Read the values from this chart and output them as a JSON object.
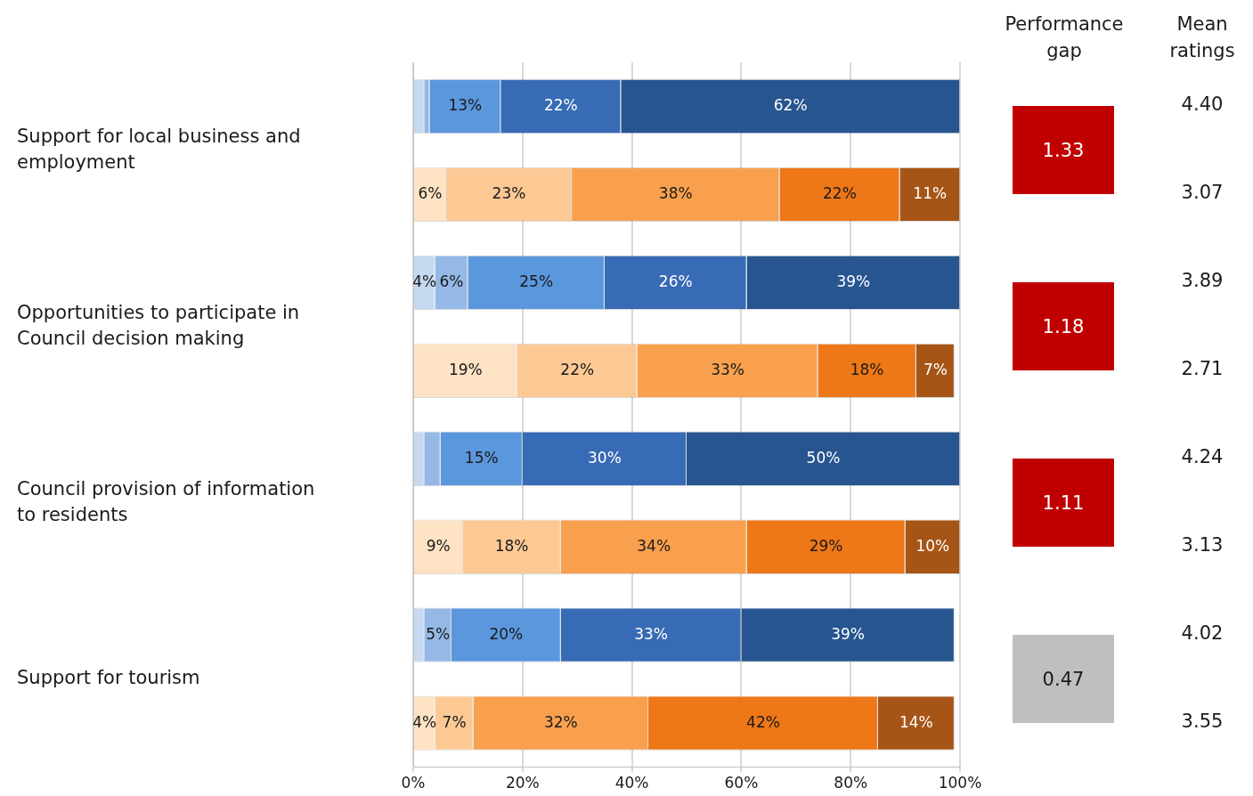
{
  "chart_data": [
    {
      "type": "bar",
      "orientation": "horizontal",
      "stacked": true,
      "categories": [
        "Support for local business and employment",
        null,
        "Opportunities to participate in Council decision making",
        null,
        "Council provision of information to residents",
        null,
        "Support for tourism",
        null
      ],
      "series": [
        {
          "color": "#c5d9f1",
          "values": [
            2,
            null,
            4,
            null,
            2,
            null,
            2,
            null
          ],
          "value_labels": [
            null,
            null,
            "4%",
            null,
            null,
            null,
            null,
            null
          ]
        },
        {
          "color": "#95b8e6",
          "values": [
            1,
            null,
            6,
            null,
            3,
            null,
            5,
            null
          ],
          "value_labels": [
            null,
            null,
            "6%",
            null,
            null,
            null,
            "5%",
            null
          ]
        },
        {
          "color": "#5b97dd",
          "values": [
            13,
            null,
            25,
            null,
            15,
            null,
            20,
            null
          ],
          "value_labels": [
            "13%",
            null,
            "25%",
            null,
            "15%",
            null,
            "20%",
            null
          ]
        },
        {
          "color": "#386bb5",
          "values": [
            22,
            null,
            26,
            null,
            30,
            null,
            33,
            null
          ],
          "value_labels": [
            "22%",
            null,
            "26%",
            null,
            "30%",
            null,
            "33%",
            null
          ]
        },
        {
          "color": "#265590",
          "values": [
            62,
            null,
            39,
            null,
            50,
            null,
            39,
            null
          ],
          "value_labels": [
            "62%",
            null,
            "39%",
            null,
            "50%",
            null,
            "39%",
            null
          ]
        },
        {
          "color": "#fde2c4",
          "values": [
            null,
            6,
            null,
            19,
            null,
            9,
            null,
            4
          ],
          "value_labels": [
            null,
            "6%",
            null,
            "19%",
            null,
            "9%",
            null,
            "4%"
          ]
        },
        {
          "color": "#fcc995",
          "values": [
            null,
            23,
            null,
            22,
            null,
            18,
            null,
            7
          ],
          "value_labels": [
            null,
            "23%",
            null,
            "22%",
            null,
            "18%",
            null,
            "7%"
          ]
        },
        {
          "color": "#f9a04e",
          "values": [
            null,
            38,
            null,
            33,
            null,
            34,
            null,
            32
          ],
          "value_labels": [
            null,
            "38%",
            null,
            "33%",
            null,
            "34%",
            null,
            "32%"
          ]
        },
        {
          "color": "#ee7718",
          "values": [
            null,
            22,
            null,
            18,
            null,
            29,
            null,
            42
          ],
          "value_labels": [
            null,
            "22%",
            null,
            "18%",
            null,
            "29%",
            null,
            "42%"
          ]
        },
        {
          "color": "#a65516",
          "values": [
            null,
            11,
            null,
            7,
            null,
            10,
            null,
            14
          ],
          "value_labels": [
            null,
            "11%",
            null,
            "7%",
            null,
            "10%",
            null,
            "14%"
          ]
        }
      ],
      "xlim": [
        0,
        100
      ],
      "xticks": [
        {
          "value": 0,
          "label": "0%"
        },
        {
          "value": 20,
          "label": "20%"
        },
        {
          "value": 40,
          "label": "40%"
        },
        {
          "value": 60,
          "label": "60%"
        },
        {
          "value": 80,
          "label": "80%"
        },
        {
          "value": 100,
          "label": "100%"
        }
      ],
      "grid": "x"
    },
    {
      "type": "other",
      "title": "Performance gap",
      "annotations": [
        "1.33",
        "1.18",
        "1.11",
        "0.47"
      ],
      "colors": [
        "#c00000",
        "#c00000",
        "#c00000",
        "#bfbfbf"
      ]
    },
    {
      "type": "other",
      "title": "Mean ratings",
      "annotations": [
        "4.40",
        "3.07",
        "3.89",
        "2.71",
        "4.24",
        "3.13",
        "4.02",
        "3.55"
      ]
    }
  ]
}
